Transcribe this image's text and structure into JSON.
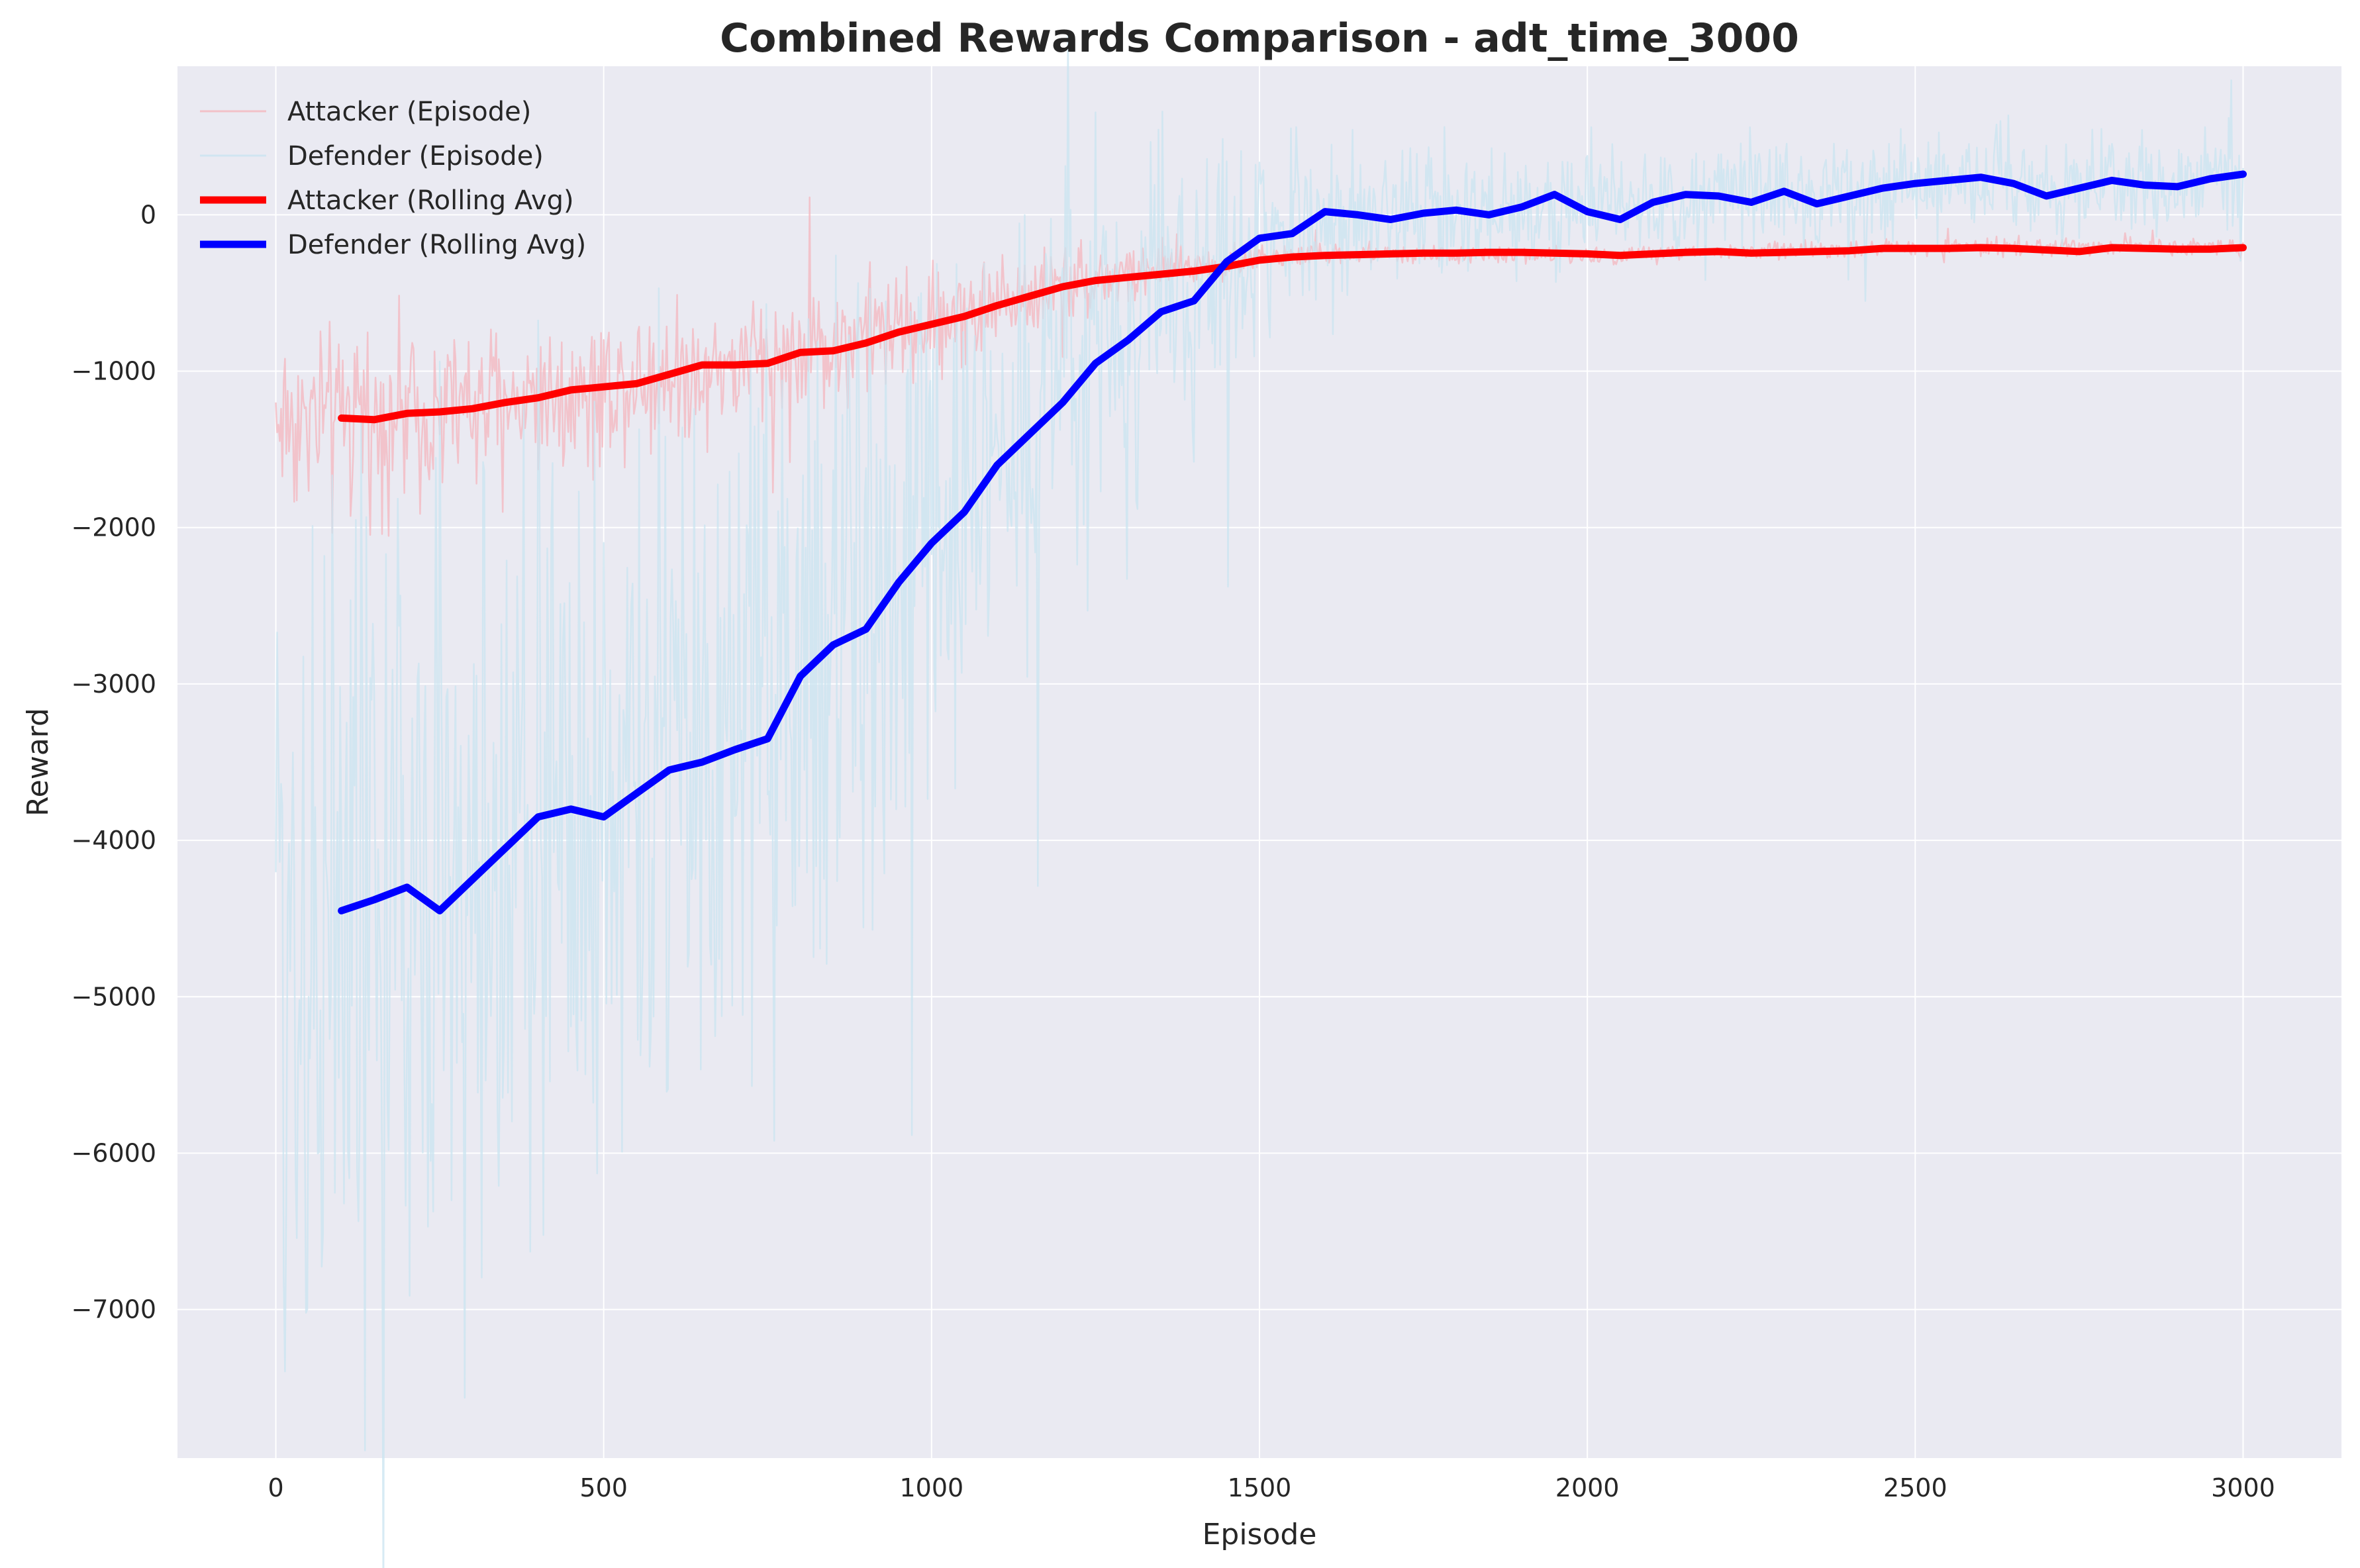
{
  "chart_data": {
    "type": "line",
    "title": "Combined Rewards Comparison - adt_time_3000",
    "xlabel": "Episode",
    "ylabel": "Reward",
    "xlim": [
      -150,
      3150
    ],
    "ylim": [
      -7950,
      950
    ],
    "xticks": [
      0,
      500,
      1000,
      1500,
      2000,
      2500,
      3000
    ],
    "yticks": [
      -7000,
      -6000,
      -5000,
      -4000,
      -3000,
      -2000,
      -1000,
      0
    ],
    "grid": true,
    "legend_position": "top-left",
    "background": "#eaeaf2",
    "series": [
      {
        "name": "Attacker (Episode)",
        "kind": "raw",
        "color": "#f4b6bd",
        "envelope": {
          "x": [
            0,
            100,
            200,
            300,
            400,
            500,
            600,
            700,
            800,
            900,
            1000,
            1100,
            1200,
            1300,
            1400,
            1500,
            1700,
            2000,
            2500,
            3000
          ],
          "center": [
            -1300,
            -1320,
            -1260,
            -1230,
            -1150,
            -1100,
            -1000,
            -960,
            -870,
            -760,
            -700,
            -560,
            -430,
            -380,
            -330,
            -270,
            -250,
            -260,
            -210,
            -200
          ],
          "spread": [
            450,
            450,
            420,
            400,
            380,
            360,
            340,
            320,
            320,
            300,
            280,
            240,
            200,
            160,
            120,
            60,
            40,
            40,
            40,
            40
          ]
        }
      },
      {
        "name": "Defender (Episode)",
        "kind": "raw",
        "color": "#c9e4f0",
        "envelope": {
          "x": [
            0,
            100,
            200,
            300,
            400,
            500,
            600,
            700,
            800,
            900,
            1000,
            1100,
            1200,
            1300,
            1400,
            1500,
            1600,
            1800,
            2000,
            2200,
            2500,
            2800,
            3000
          ],
          "center": [
            -4600,
            -4400,
            -4350,
            -4400,
            -3800,
            -3800,
            -3600,
            -3400,
            -2800,
            -2600,
            -2100,
            -1500,
            -1000,
            -700,
            -500,
            -150,
            0,
            0,
            50,
            100,
            200,
            200,
            250
          ],
          "spread": [
            2400,
            2200,
            2200,
            2200,
            2100,
            2000,
            1900,
            1800,
            1700,
            1500,
            1300,
            1100,
            1000,
            900,
            700,
            500,
            350,
            300,
            300,
            250,
            250,
            250,
            250
          ]
        }
      },
      {
        "name": "Attacker (Rolling Avg)",
        "kind": "rolling",
        "color": "#ff0000",
        "x": [
          100,
          150,
          200,
          250,
          300,
          350,
          400,
          450,
          500,
          550,
          600,
          650,
          700,
          750,
          800,
          850,
          900,
          950,
          1000,
          1050,
          1100,
          1150,
          1200,
          1250,
          1300,
          1350,
          1400,
          1450,
          1500,
          1550,
          1600,
          1650,
          1700,
          1750,
          1800,
          1850,
          1900,
          1950,
          2000,
          2050,
          2100,
          2150,
          2200,
          2250,
          2300,
          2350,
          2400,
          2450,
          2500,
          2550,
          2600,
          2650,
          2700,
          2750,
          2800,
          2850,
          2900,
          2950,
          3000
        ],
        "y": [
          -1300,
          -1310,
          -1270,
          -1260,
          -1240,
          -1200,
          -1170,
          -1120,
          -1100,
          -1080,
          -1020,
          -960,
          -960,
          -950,
          -880,
          -870,
          -820,
          -750,
          -700,
          -650,
          -580,
          -520,
          -460,
          -420,
          -400,
          -380,
          -360,
          -330,
          -290,
          -270,
          -260,
          -255,
          -250,
          -245,
          -245,
          -240,
          -240,
          -245,
          -250,
          -260,
          -250,
          -240,
          -235,
          -245,
          -240,
          -235,
          -230,
          -215,
          -215,
          -215,
          -210,
          -215,
          -225,
          -235,
          -210,
          -215,
          -220,
          -220,
          -210
        ]
      },
      {
        "name": "Defender (Rolling Avg)",
        "kind": "rolling",
        "color": "#0000ff",
        "x": [
          100,
          150,
          200,
          250,
          300,
          350,
          400,
          450,
          500,
          550,
          600,
          650,
          700,
          750,
          800,
          850,
          900,
          950,
          1000,
          1050,
          1100,
          1150,
          1200,
          1250,
          1300,
          1350,
          1400,
          1450,
          1500,
          1550,
          1600,
          1650,
          1700,
          1750,
          1800,
          1850,
          1900,
          1950,
          2000,
          2050,
          2100,
          2150,
          2200,
          2250,
          2300,
          2350,
          2400,
          2450,
          2500,
          2550,
          2600,
          2650,
          2700,
          2750,
          2800,
          2850,
          2900,
          2950,
          3000
        ],
        "y": [
          -4450,
          -4380,
          -4300,
          -4450,
          -4250,
          -4050,
          -3850,
          -3800,
          -3850,
          -3700,
          -3550,
          -3500,
          -3420,
          -3350,
          -2950,
          -2750,
          -2650,
          -2350,
          -2100,
          -1900,
          -1600,
          -1400,
          -1200,
          -950,
          -800,
          -620,
          -550,
          -300,
          -150,
          -120,
          20,
          0,
          -30,
          10,
          30,
          0,
          50,
          130,
          20,
          -30,
          80,
          130,
          120,
          80,
          150,
          70,
          120,
          170,
          200,
          220,
          240,
          200,
          120,
          170,
          220,
          190,
          180,
          230,
          260
        ]
      }
    ]
  }
}
